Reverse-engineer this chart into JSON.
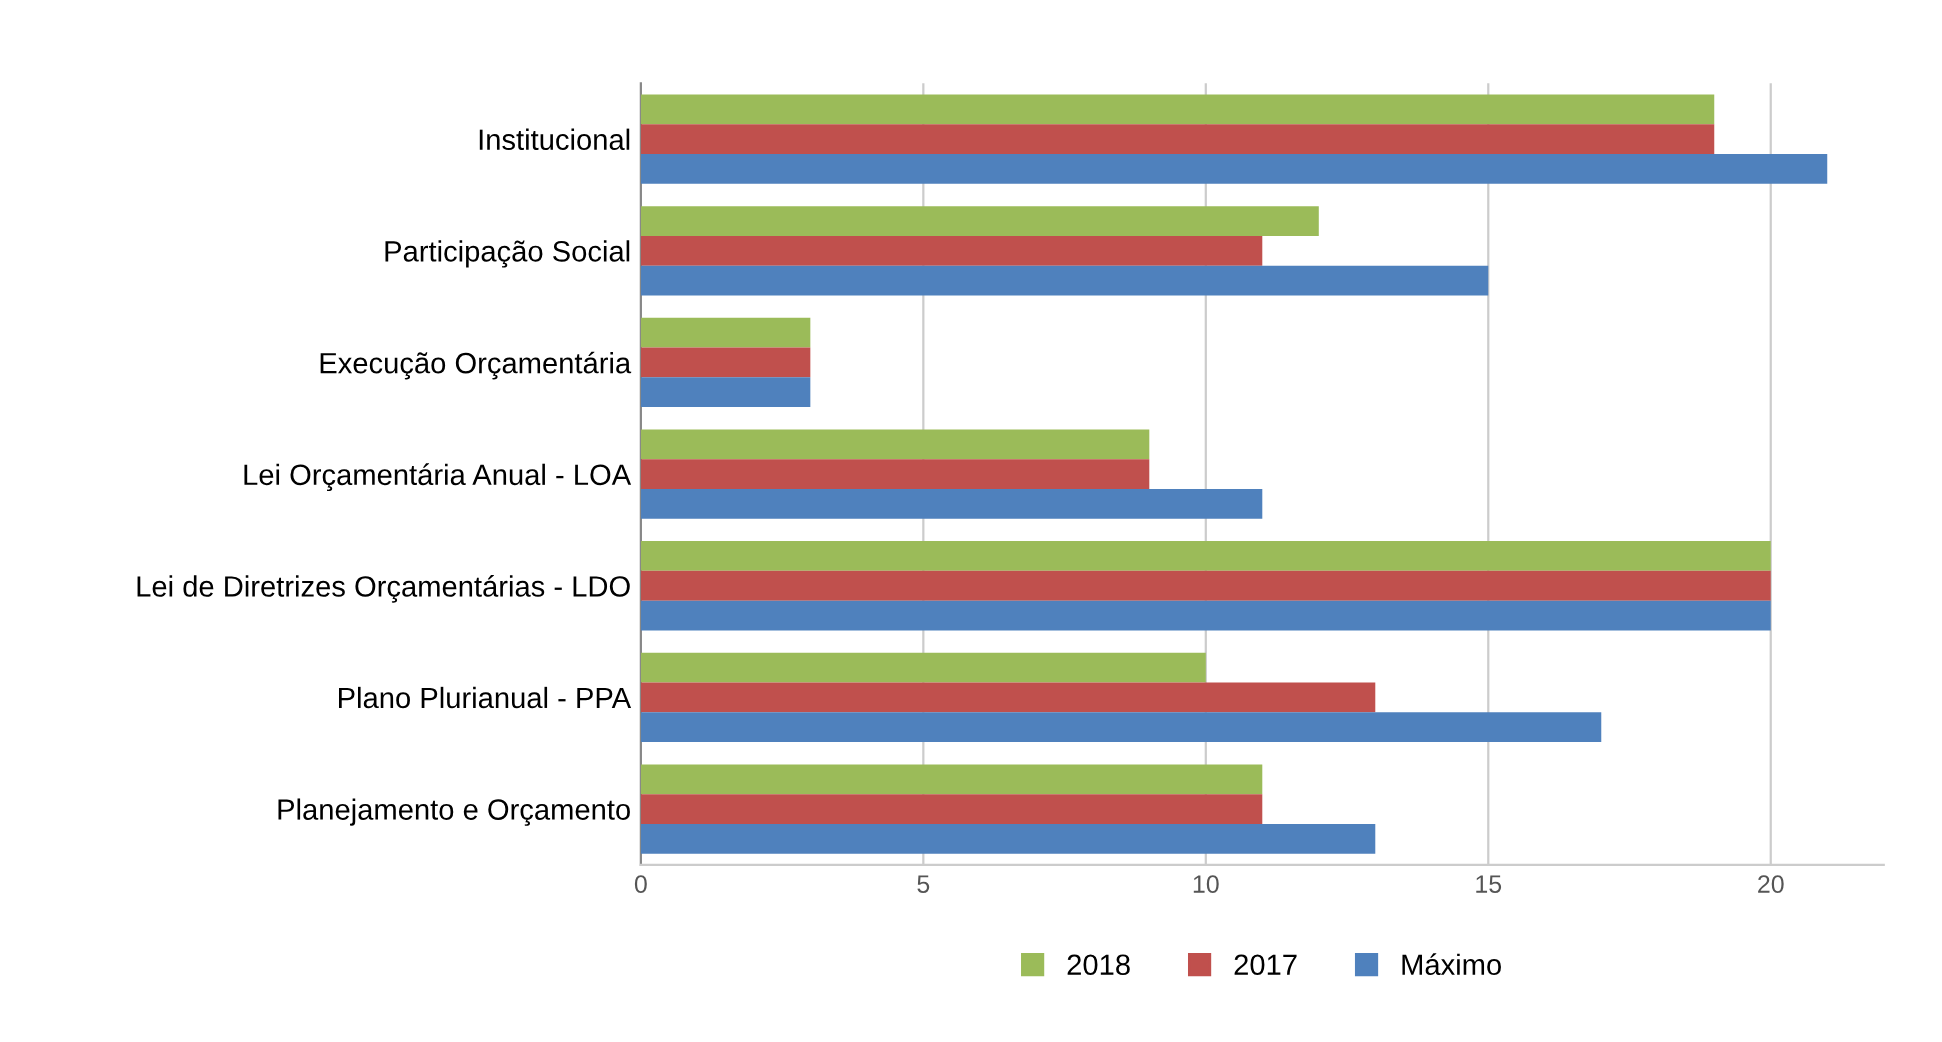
{
  "chart_data": {
    "type": "bar",
    "orientation": "horizontal",
    "categories": [
      "Institucional",
      "Participação Social",
      "Execução Orçamentária",
      "Lei Orçamentária Anual - LOA",
      "Lei de Diretrizes Orçamentárias - LDO",
      "Plano Plurianual - PPA",
      "Planejamento e Orçamento"
    ],
    "series": [
      {
        "name": "2018",
        "color": "#9bbb59",
        "values": [
          19,
          12,
          3,
          9,
          20,
          10,
          11
        ]
      },
      {
        "name": "2017",
        "color": "#c0504d",
        "values": [
          19,
          11,
          3,
          9,
          20,
          13,
          11
        ]
      },
      {
        "name": "Máximo",
        "color": "#4f81bd",
        "values": [
          21,
          15,
          3,
          11,
          20,
          17,
          13
        ]
      }
    ],
    "xlim": [
      0,
      22
    ],
    "xticks": [
      0,
      5,
      10,
      15,
      20
    ],
    "grid": "x",
    "legend": "bottom"
  }
}
